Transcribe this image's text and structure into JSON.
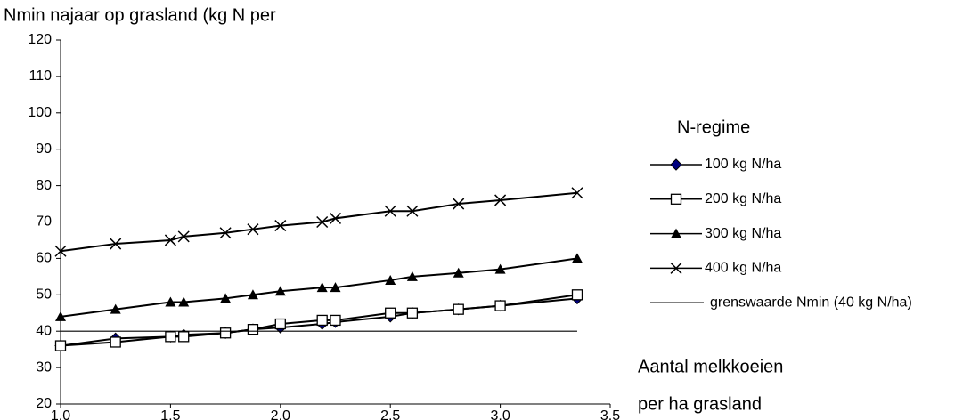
{
  "chart_data": {
    "type": "line",
    "title": "Nmin najaar op grasland (kg N per",
    "xlabel": [
      "Aantal melkkoeien",
      "per ha grasland"
    ],
    "legend_title": "N-regime",
    "x": [
      1.0,
      1.25,
      1.5,
      1.56,
      1.75,
      1.875,
      2.0,
      2.19,
      2.25,
      2.5,
      2.6,
      2.81,
      3.0,
      3.35
    ],
    "series": [
      {
        "name": "100 kg N/ha",
        "color": "#000080",
        "marker": "diamond",
        "values": [
          36,
          38,
          38.5,
          39,
          39.5,
          40.5,
          41,
          42,
          42.5,
          44,
          45,
          46,
          47,
          49
        ]
      },
      {
        "name": "200 kg N/ha",
        "color": "#000000",
        "marker": "square",
        "values": [
          36,
          37,
          38.5,
          38.5,
          39.5,
          40.5,
          42,
          43,
          43,
          45,
          45,
          46,
          47,
          50
        ]
      },
      {
        "name": "300 kg N/ha",
        "color": "#000000",
        "marker": "triangle",
        "values": [
          44,
          46,
          48,
          48,
          49,
          50,
          51,
          52,
          52,
          54,
          55,
          56,
          57,
          60
        ]
      },
      {
        "name": "400 kg N/ha",
        "color": "#000000",
        "marker": "x",
        "values": [
          62,
          64,
          65,
          66,
          67,
          68,
          69,
          70,
          71,
          73,
          73,
          75,
          76,
          78
        ]
      },
      {
        "name": "grenswaarde Nmin (40 kg N/ha)",
        "color": "#000000",
        "values": [
          40,
          40,
          40,
          40,
          40,
          40,
          40,
          40,
          40,
          40,
          40,
          40,
          40,
          40
        ]
      }
    ],
    "xlim": [
      1.0,
      3.5
    ],
    "xticks": [
      {
        "value": 1.0,
        "label": "1,0"
      },
      {
        "value": 1.5,
        "label": "1,5"
      },
      {
        "value": 2.0,
        "label": "2,0"
      },
      {
        "value": 2.5,
        "label": "2,5"
      },
      {
        "value": 3.0,
        "label": "3,0"
      },
      {
        "value": 3.5,
        "label": "3,5"
      }
    ],
    "ylim": [
      20,
      120
    ],
    "yticks": [
      20,
      30,
      40,
      50,
      60,
      70,
      80,
      90,
      100,
      110,
      120
    ]
  }
}
